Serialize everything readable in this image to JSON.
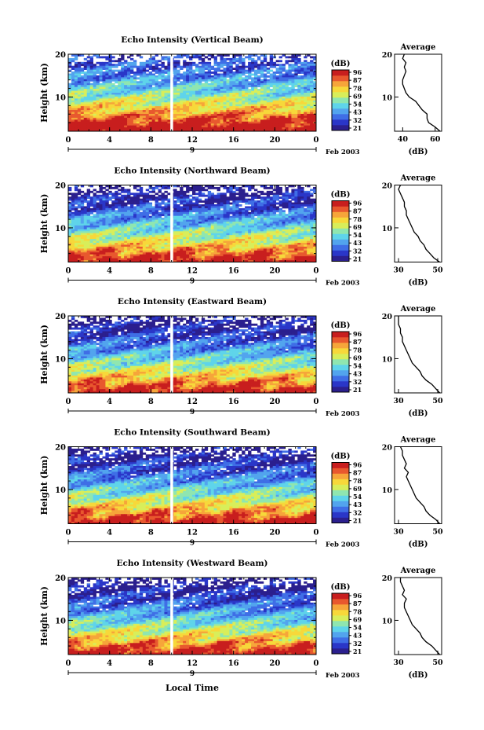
{
  "page": {
    "xlabel": "Local Time"
  },
  "colorbar": {
    "unit": "(dB)",
    "ticks": [
      "96",
      "87",
      "78",
      "69",
      "54",
      "43",
      "32",
      "21"
    ],
    "colors": [
      "#2b1f8e",
      "#2a36c8",
      "#3f6ee6",
      "#52a4ee",
      "#5fd4ea",
      "#8fe6b0",
      "#d8ee5a",
      "#f7d83a",
      "#f6a53a",
      "#e8582e",
      "#c81e1e"
    ]
  },
  "chart_data": [
    {
      "type": "heatmap",
      "title": "Echo Intensity (Vertical Beam)",
      "ylabel": "Height (km)",
      "date_label": "Feb 2003",
      "x_ticks": [
        "0",
        "4",
        "8",
        "12",
        "16",
        "20",
        "0"
      ],
      "y_ticks": [
        "10",
        "20"
      ],
      "day_label": "9",
      "xlim": [
        0,
        24
      ],
      "ylim": [
        2,
        20
      ],
      "data_gap_hour": 10,
      "profile": {
        "title": "Average",
        "xlabel": "(dB)",
        "x_ticks": [
          "40",
          "60"
        ],
        "y_ticks": [
          "10",
          "20"
        ],
        "xlim": [
          35,
          64
        ],
        "ylim": [
          2,
          20
        ],
        "height": [
          2,
          3,
          4,
          5,
          6,
          7,
          8,
          9,
          10,
          11,
          12,
          13,
          14,
          15,
          16,
          17,
          18,
          19,
          20
        ],
        "db": [
          63,
          60,
          56,
          55,
          55,
          52,
          50,
          48,
          44,
          42,
          41,
          40,
          40,
          41,
          42,
          41,
          42,
          40,
          41
        ]
      }
    },
    {
      "type": "heatmap",
      "title": "Echo Intensity (Northward Beam)",
      "ylabel": "Height (km)",
      "date_label": "Feb 2003",
      "x_ticks": [
        "0",
        "4",
        "8",
        "12",
        "16",
        "20",
        "0"
      ],
      "y_ticks": [
        "10",
        "20"
      ],
      "day_label": "9",
      "xlim": [
        0,
        24
      ],
      "ylim": [
        2,
        20
      ],
      "data_gap_hour": 10,
      "profile": {
        "title": "Average",
        "xlabel": "(dB)",
        "x_ticks": [
          "30",
          "50"
        ],
        "y_ticks": [
          "10",
          "20"
        ],
        "xlim": [
          28,
          52
        ],
        "ylim": [
          2,
          20
        ],
        "height": [
          2,
          3,
          4,
          5,
          6,
          7,
          8,
          9,
          10,
          11,
          12,
          13,
          14,
          15,
          16,
          17,
          18,
          19,
          20
        ],
        "db": [
          51,
          48,
          46,
          44,
          43,
          41,
          40,
          38,
          37,
          36,
          35,
          34,
          34,
          33,
          33,
          32,
          31,
          30,
          31
        ]
      }
    },
    {
      "type": "heatmap",
      "title": "Echo Intensity (Eastward Beam)",
      "ylabel": "Height (km)",
      "date_label": "Feb 2003",
      "x_ticks": [
        "0",
        "4",
        "8",
        "12",
        "16",
        "20",
        "0"
      ],
      "y_ticks": [
        "10",
        "20"
      ],
      "day_label": "9",
      "xlim": [
        0,
        24
      ],
      "ylim": [
        2,
        20
      ],
      "data_gap_hour": 10,
      "profile": {
        "title": "Average",
        "xlabel": "(dB)",
        "x_ticks": [
          "30",
          "50"
        ],
        "y_ticks": [
          "10",
          "20"
        ],
        "xlim": [
          28,
          52
        ],
        "ylim": [
          2,
          20
        ],
        "height": [
          2,
          3,
          4,
          5,
          6,
          7,
          8,
          9,
          10,
          11,
          12,
          13,
          14,
          15,
          16,
          17,
          18,
          19,
          20
        ],
        "db": [
          51,
          49,
          47,
          44,
          42,
          41,
          39,
          37,
          36,
          35,
          34,
          33,
          32,
          32,
          31,
          31,
          30,
          30,
          30
        ]
      }
    },
    {
      "type": "heatmap",
      "title": "Echo Intensity (Southward Beam)",
      "ylabel": "Height (km)",
      "date_label": "Feb 2003",
      "x_ticks": [
        "0",
        "4",
        "8",
        "12",
        "16",
        "20",
        "0"
      ],
      "y_ticks": [
        "10",
        "20"
      ],
      "day_label": "9",
      "xlim": [
        0,
        24
      ],
      "ylim": [
        2,
        20
      ],
      "data_gap_hour": 10,
      "profile": {
        "title": "Average",
        "xlabel": "(dB)",
        "x_ticks": [
          "30",
          "50"
        ],
        "y_ticks": [
          "10",
          "20"
        ],
        "xlim": [
          28,
          52
        ],
        "ylim": [
          2,
          20
        ],
        "height": [
          2,
          3,
          4,
          5,
          6,
          7,
          8,
          9,
          10,
          11,
          12,
          13,
          14,
          15,
          16,
          17,
          18,
          19,
          20
        ],
        "db": [
          51,
          49,
          46,
          44,
          43,
          41,
          39,
          38,
          37,
          36,
          35,
          34,
          35,
          33,
          34,
          33,
          32,
          32,
          31
        ]
      }
    },
    {
      "type": "heatmap",
      "title": "Echo Intensity (Westward Beam)",
      "ylabel": "Height (km)",
      "date_label": "Feb 2003",
      "x_ticks": [
        "0",
        "4",
        "8",
        "12",
        "16",
        "20",
        "0"
      ],
      "y_ticks": [
        "10",
        "20"
      ],
      "day_label": "9",
      "xlim": [
        0,
        24
      ],
      "ylim": [
        2,
        20
      ],
      "data_gap_hour": 10,
      "profile": {
        "title": "Average",
        "xlabel": "(dB)",
        "x_ticks": [
          "30",
          "50"
        ],
        "y_ticks": [
          "10",
          "20"
        ],
        "xlim": [
          28,
          52
        ],
        "ylim": [
          2,
          20
        ],
        "height": [
          2,
          3,
          4,
          5,
          6,
          7,
          8,
          9,
          10,
          11,
          12,
          13,
          14,
          15,
          16,
          17,
          18,
          19,
          20
        ],
        "db": [
          51,
          49,
          47,
          44,
          42,
          41,
          39,
          37,
          36,
          35,
          34,
          33,
          33,
          34,
          32,
          33,
          32,
          31,
          31
        ]
      }
    }
  ]
}
